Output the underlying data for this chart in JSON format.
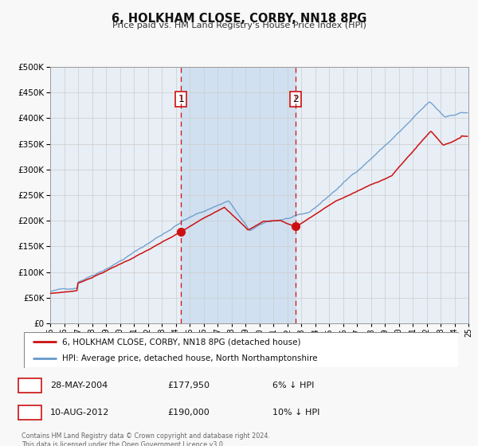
{
  "title": "6, HOLKHAM CLOSE, CORBY, NN18 8PG",
  "subtitle": "Price paid vs. HM Land Registry's House Price Index (HPI)",
  "hpi_color": "#6699cc",
  "sale_color": "#cc1111",
  "background_color": "#f8f8f8",
  "plot_bg_color": "#e8eef5",
  "span_color": "#d0e0f0",
  "grid_color": "#cccccc",
  "sale1_x": 2004.38,
  "sale1_y": 177950,
  "sale2_x": 2012.6,
  "sale2_y": 190000,
  "legend_line1": "6, HOLKHAM CLOSE, CORBY, NN18 8PG (detached house)",
  "legend_line2": "HPI: Average price, detached house, North Northamptonshire",
  "table_row1": [
    "1",
    "28-MAY-2004",
    "£177,950",
    "6% ↓ HPI"
  ],
  "table_row2": [
    "2",
    "10-AUG-2012",
    "£190,000",
    "10% ↓ HPI"
  ],
  "footer": "Contains HM Land Registry data © Crown copyright and database right 2024.\nThis data is licensed under the Open Government Licence v3.0.",
  "ylim": [
    0,
    500000
  ],
  "yticks": [
    0,
    50000,
    100000,
    150000,
    200000,
    250000,
    300000,
    350000,
    400000,
    450000,
    500000
  ],
  "xmin": 1995,
  "xmax": 2025
}
